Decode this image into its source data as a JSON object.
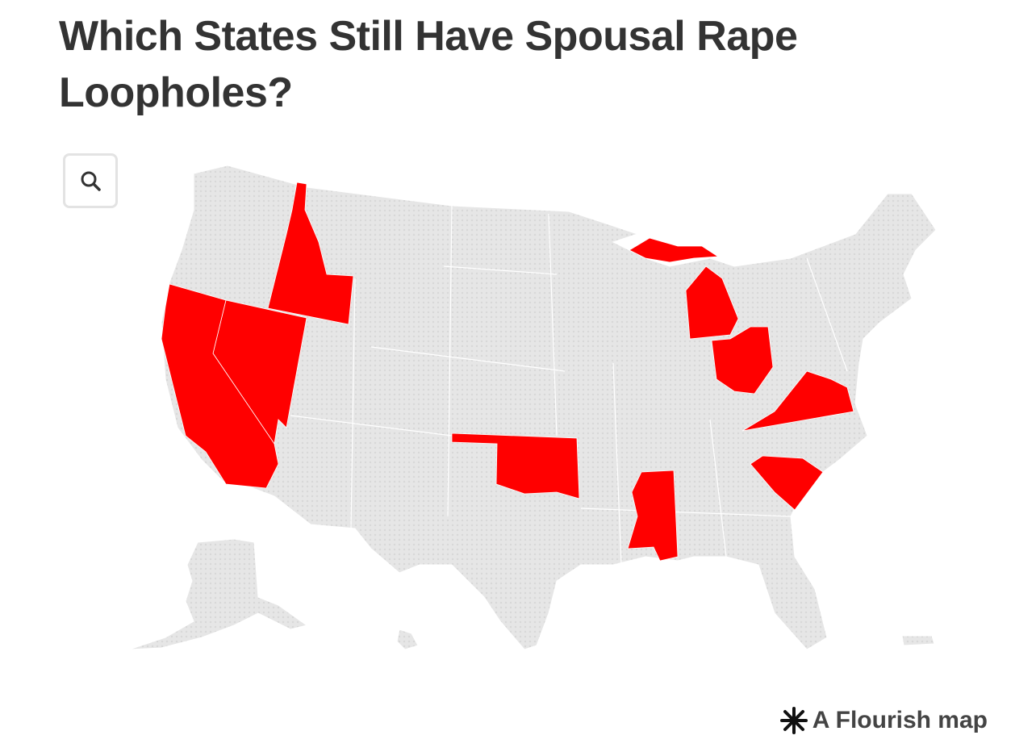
{
  "title": "Which States Still Have Spousal Rape Loopholes?",
  "credit": "A Flourish map",
  "highlight_color": "#ff0000",
  "base_color": "#e6e6e6"
}
